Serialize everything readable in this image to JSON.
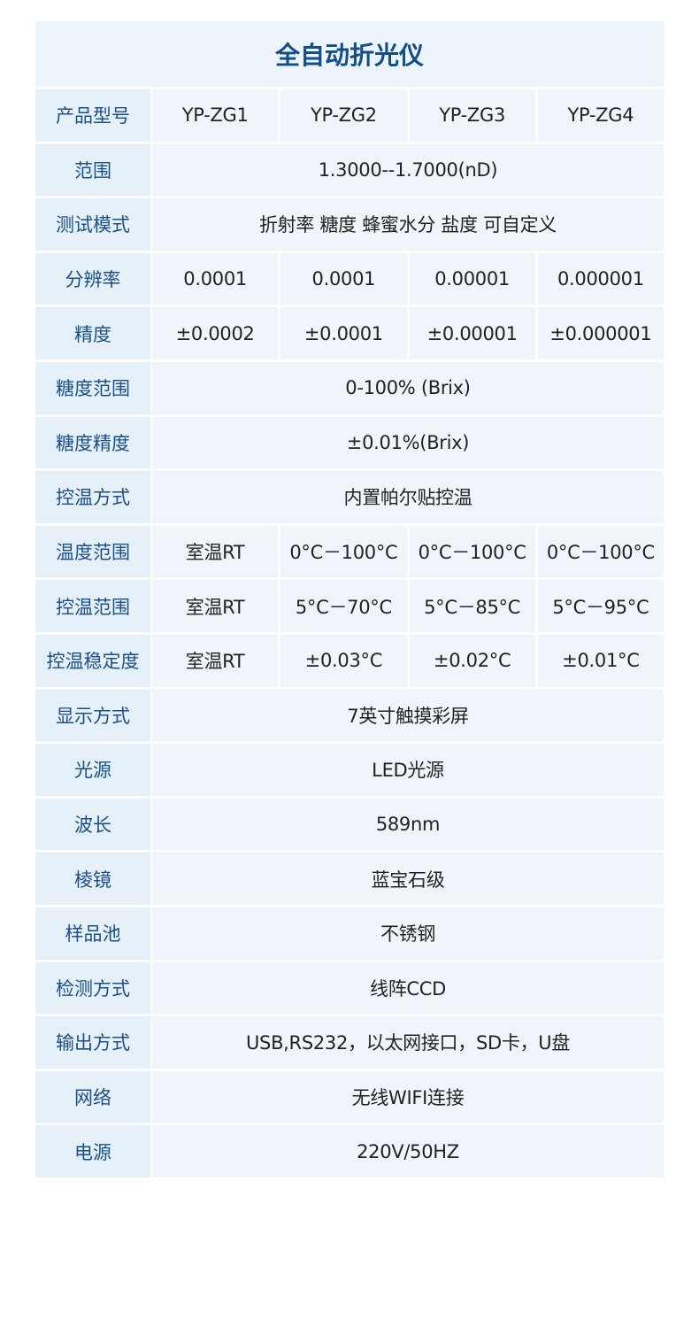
{
  "title": "全自动折光仪",
  "rows": [
    {
      "label": "产品型号",
      "values": [
        "YP-ZG1",
        "YP-ZG2",
        "YP-ZG3",
        "YP-ZG4"
      ]
    },
    {
      "label": "范围",
      "values": [
        "1.3000--1.7000(nD)"
      ]
    },
    {
      "label": "测试模式",
      "values": [
        "折射率 糖度 蜂蜜水分 盐度 可自定义"
      ]
    },
    {
      "label": "分辨率",
      "values": [
        "0.0001",
        "0.0001",
        "0.00001",
        "0.000001"
      ]
    },
    {
      "label": "精度",
      "values": [
        "±0.0002",
        "±0.0001",
        "±0.00001",
        "±0.000001"
      ]
    },
    {
      "label": "糖度范围",
      "values": [
        "0-100% (Brix)"
      ]
    },
    {
      "label": "糖度精度",
      "values": [
        "±0.01%(Brix)"
      ]
    },
    {
      "label": "控温方式",
      "values": [
        "内置帕尔贴控温"
      ]
    },
    {
      "label": "温度范围",
      "values": [
        "室温RT",
        "0°C－100°C",
        "0°C－100°C",
        "0°C－100°C"
      ]
    },
    {
      "label": "控温范围",
      "values": [
        "室温RT",
        "5°C－70°C",
        "5°C－85°C",
        "5°C－95°C"
      ]
    },
    {
      "label": "控温稳定度",
      "values": [
        "室温RT",
        "±0.03°C",
        "±0.02°C",
        "±0.01°C"
      ]
    },
    {
      "label": "显示方式",
      "values": [
        "7英寸触摸彩屏"
      ]
    },
    {
      "label": "光源",
      "values": [
        "LED光源"
      ]
    },
    {
      "label": "波长",
      "values": [
        "589nm"
      ]
    },
    {
      "label": "棱镜",
      "values": [
        "蓝宝石级"
      ]
    },
    {
      "label": "样品池",
      "values": [
        "不锈钢"
      ]
    },
    {
      "label": "检测方式",
      "values": [
        "线阵CCD"
      ]
    },
    {
      "label": "输出方式",
      "values": [
        "USB,RS232，以太网接口，SD卡，U盘"
      ]
    },
    {
      "label": "网络",
      "values": [
        "无线WIFI连接"
      ]
    },
    {
      "label": "电源",
      "values": [
        "220V/50HZ"
      ]
    }
  ]
}
